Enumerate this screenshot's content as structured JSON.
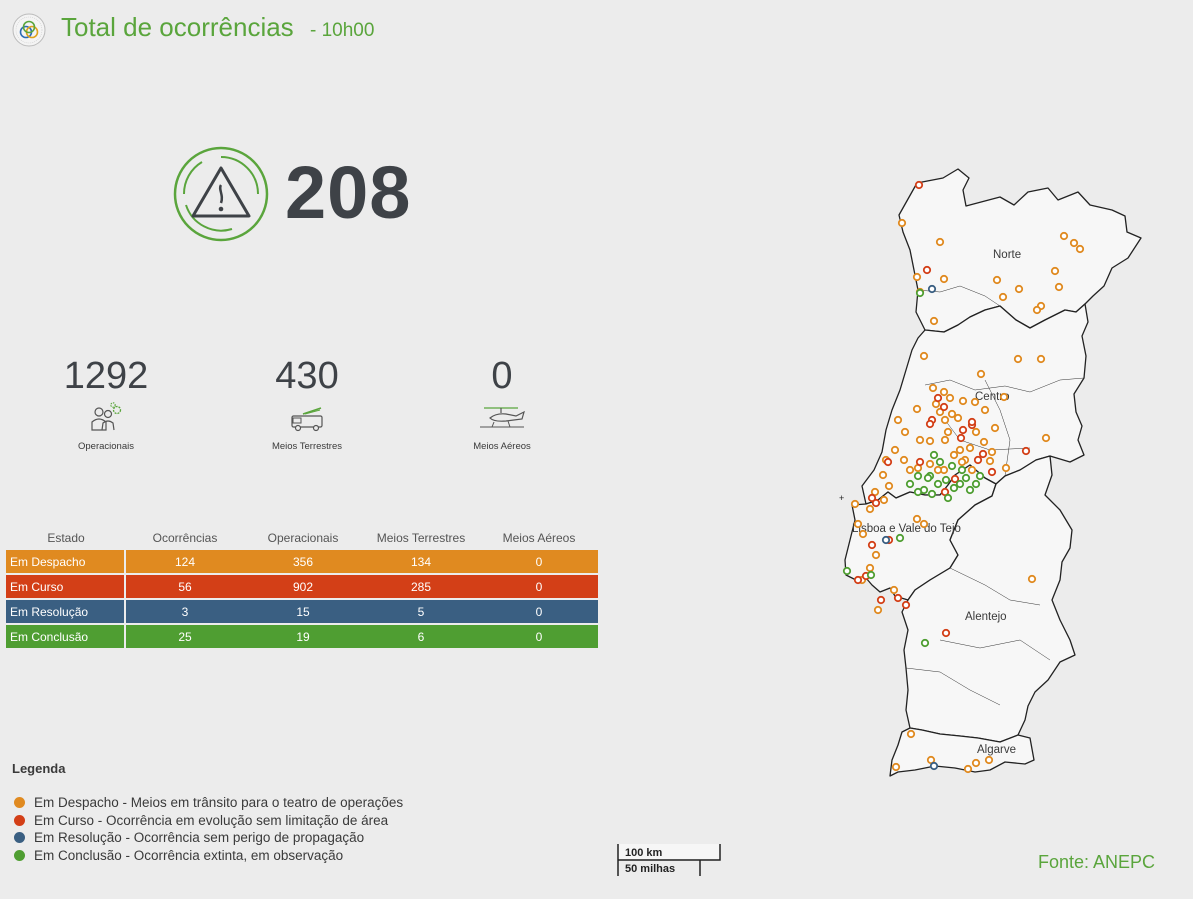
{
  "header": {
    "title": "Total de ocorrências",
    "subtitle": "- 10h00"
  },
  "total": "208",
  "stats": [
    {
      "value": "1292",
      "label": "Operacionais",
      "icon": "firefighters-icon"
    },
    {
      "value": "430",
      "label": "Meios Terrestres",
      "icon": "fire-truck-icon"
    },
    {
      "value": "0",
      "label": "Meios Aéreos",
      "icon": "aircraft-icon"
    }
  ],
  "table": {
    "headers": [
      "Estado",
      "Ocorrências",
      "Operacionais",
      "Meios Terrestres",
      "Meios Aéreos"
    ],
    "rows": [
      {
        "state": "Em Despacho",
        "values": [
          "124",
          "356",
          "134",
          "0"
        ],
        "color": "#e08a20"
      },
      {
        "state": "Em Curso",
        "values": [
          "56",
          "902",
          "285",
          "0"
        ],
        "color": "#d33f17"
      },
      {
        "state": "Em Resolução",
        "values": [
          "3",
          "15",
          "5",
          "0"
        ],
        "color": "#3a5f82"
      },
      {
        "state": "Em Conclusão",
        "values": [
          "25",
          "19",
          "6",
          "0"
        ],
        "color": "#4f9e32"
      }
    ]
  },
  "legend": {
    "title": "Legenda",
    "items": [
      {
        "label": "Em Despacho - Meios em trânsito para o teatro de operações",
        "color": "#e08a20"
      },
      {
        "label": "Em Curso - Ocorrência em evolução sem limitação de área",
        "color": "#d33f17"
      },
      {
        "label": "Em Resolução - Ocorrência sem perigo de propagação",
        "color": "#3a5f82"
      },
      {
        "label": "Em Conclusão - Ocorrência extinta, em observação",
        "color": "#4f9e32"
      }
    ]
  },
  "map": {
    "regions": [
      "Norte",
      "Centro",
      "Lisboa e Vale do Tejo",
      "Alentejo",
      "Algarve"
    ]
  },
  "scale": {
    "km": "100 km",
    "miles": "50 milhas"
  },
  "source": "Fonte: ANEPC",
  "colors": {
    "accent": "#5aa53c",
    "despacho": "#e08a20",
    "curso": "#d33f17",
    "resolucao": "#3a5f82",
    "conclusao": "#4f9e32"
  }
}
